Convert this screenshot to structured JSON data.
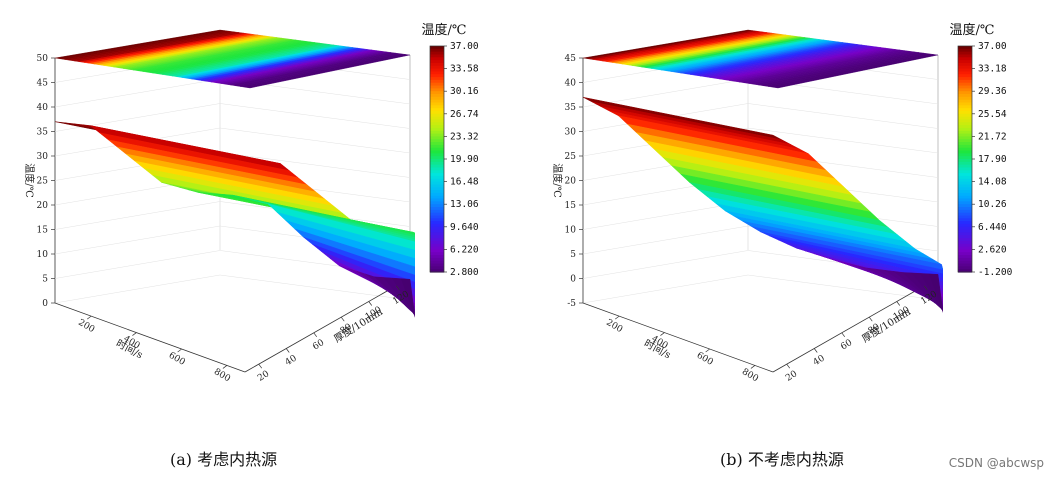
{
  "chart_data": [
    {
      "type": "surface",
      "caption": "(a)  考虑内热源",
      "zlabel": "温度/℃",
      "xlabel": "时间/s",
      "ylabel": "厚度/10mm",
      "zlim": [
        0,
        50
      ],
      "z_ticks": [
        "0",
        "5",
        "10",
        "15",
        "20",
        "25",
        "30",
        "35",
        "40",
        "45",
        "50"
      ],
      "x_ticks": [
        "200",
        "400",
        "600",
        "800"
      ],
      "y_ticks": [
        "20",
        "40",
        "60",
        "80",
        "100",
        "120"
      ],
      "colorbar_title": "温度/℃",
      "colorbar_ticks": [
        "37.00",
        "33.58",
        "30.16",
        "26.74",
        "23.32",
        "19.90",
        "16.48",
        "13.06",
        "9.640",
        "6.220",
        "2.800"
      ],
      "series": [
        {
          "profile_z": [
            37.0,
            36.0,
            30.0,
            24.0,
            21.8,
            21.0,
            19.0,
            12.0,
            6.0,
            3.5,
            2.8
          ],
          "profile_top": [
            0.72,
            0.66,
            0.55,
            0.44,
            0.4,
            0.38,
            0.3,
            0.18,
            0.08,
            0.03,
            0.0
          ]
        }
      ]
    },
    {
      "type": "surface",
      "caption": "(b)  不考虑内热源",
      "zlabel": "温度/℃",
      "xlabel": "时间/s",
      "ylabel": "厚度/10mm",
      "zlim": [
        -5,
        45
      ],
      "z_ticks": [
        "-5",
        "0",
        "5",
        "10",
        "15",
        "20",
        "25",
        "30",
        "35",
        "40",
        "45"
      ],
      "x_ticks": [
        "200",
        "400",
        "600",
        "800"
      ],
      "y_ticks": [
        "20",
        "40",
        "60",
        "80",
        "100",
        "120"
      ],
      "colorbar_title": "温度/℃",
      "colorbar_ticks": [
        "37.00",
        "33.18",
        "29.36",
        "25.54",
        "21.72",
        "17.90",
        "14.08",
        "10.26",
        "6.440",
        "2.620",
        "-1.200"
      ],
      "series": [
        {
          "profile_z": [
            37.0,
            33.0,
            26.0,
            19.0,
            13.0,
            8.5,
            5.0,
            2.5,
            0.5,
            -0.6,
            -1.2
          ],
          "profile_top": [
            0.8,
            0.6,
            0.42,
            0.28,
            0.17,
            0.09,
            0.04,
            0.0,
            0.0,
            0.0,
            0.0
          ]
        }
      ]
    }
  ],
  "watermark": "CSDN @abcwsp"
}
